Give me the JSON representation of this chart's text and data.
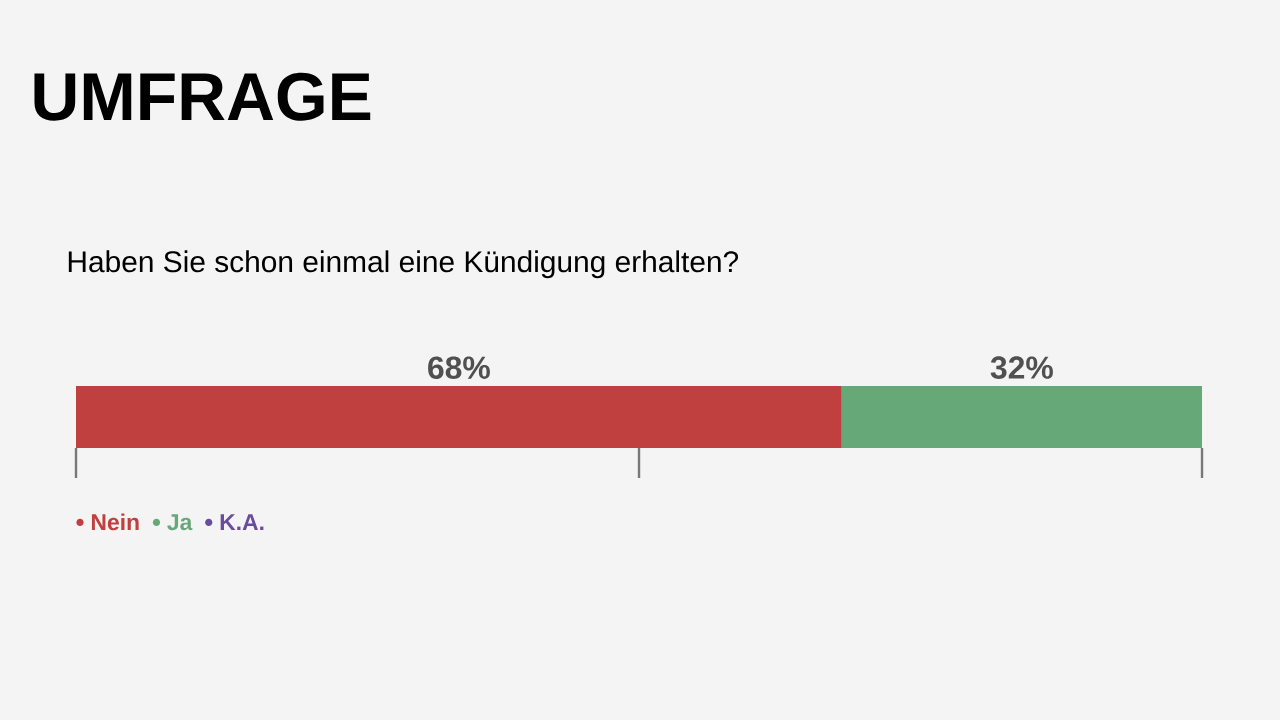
{
  "chart_data": {
    "type": "bar",
    "orientation": "horizontal",
    "stacked": true,
    "title": "UMFRAGE",
    "subtitle": "Haben Sie schon einmal eine Kündigung erhalten?",
    "categories": [
      null
    ],
    "series": [
      {
        "name": "Nein",
        "color": "#c0403f",
        "values": [
          68
        ],
        "value_labels": [
          "68%"
        ]
      },
      {
        "name": "Ja",
        "color": "#67a878",
        "values": [
          32
        ],
        "value_labels": [
          "32%"
        ]
      },
      {
        "name": "K.A.",
        "color": "#6a4c9c",
        "values": [
          null
        ],
        "value_labels": [
          null
        ]
      }
    ],
    "xlim": [
      0,
      100
    ],
    "xticks": [
      {
        "value": 0,
        "label": null
      },
      {
        "value": 50,
        "label": null
      },
      {
        "value": 100,
        "label": null
      }
    ],
    "legend": "bottom left"
  }
}
